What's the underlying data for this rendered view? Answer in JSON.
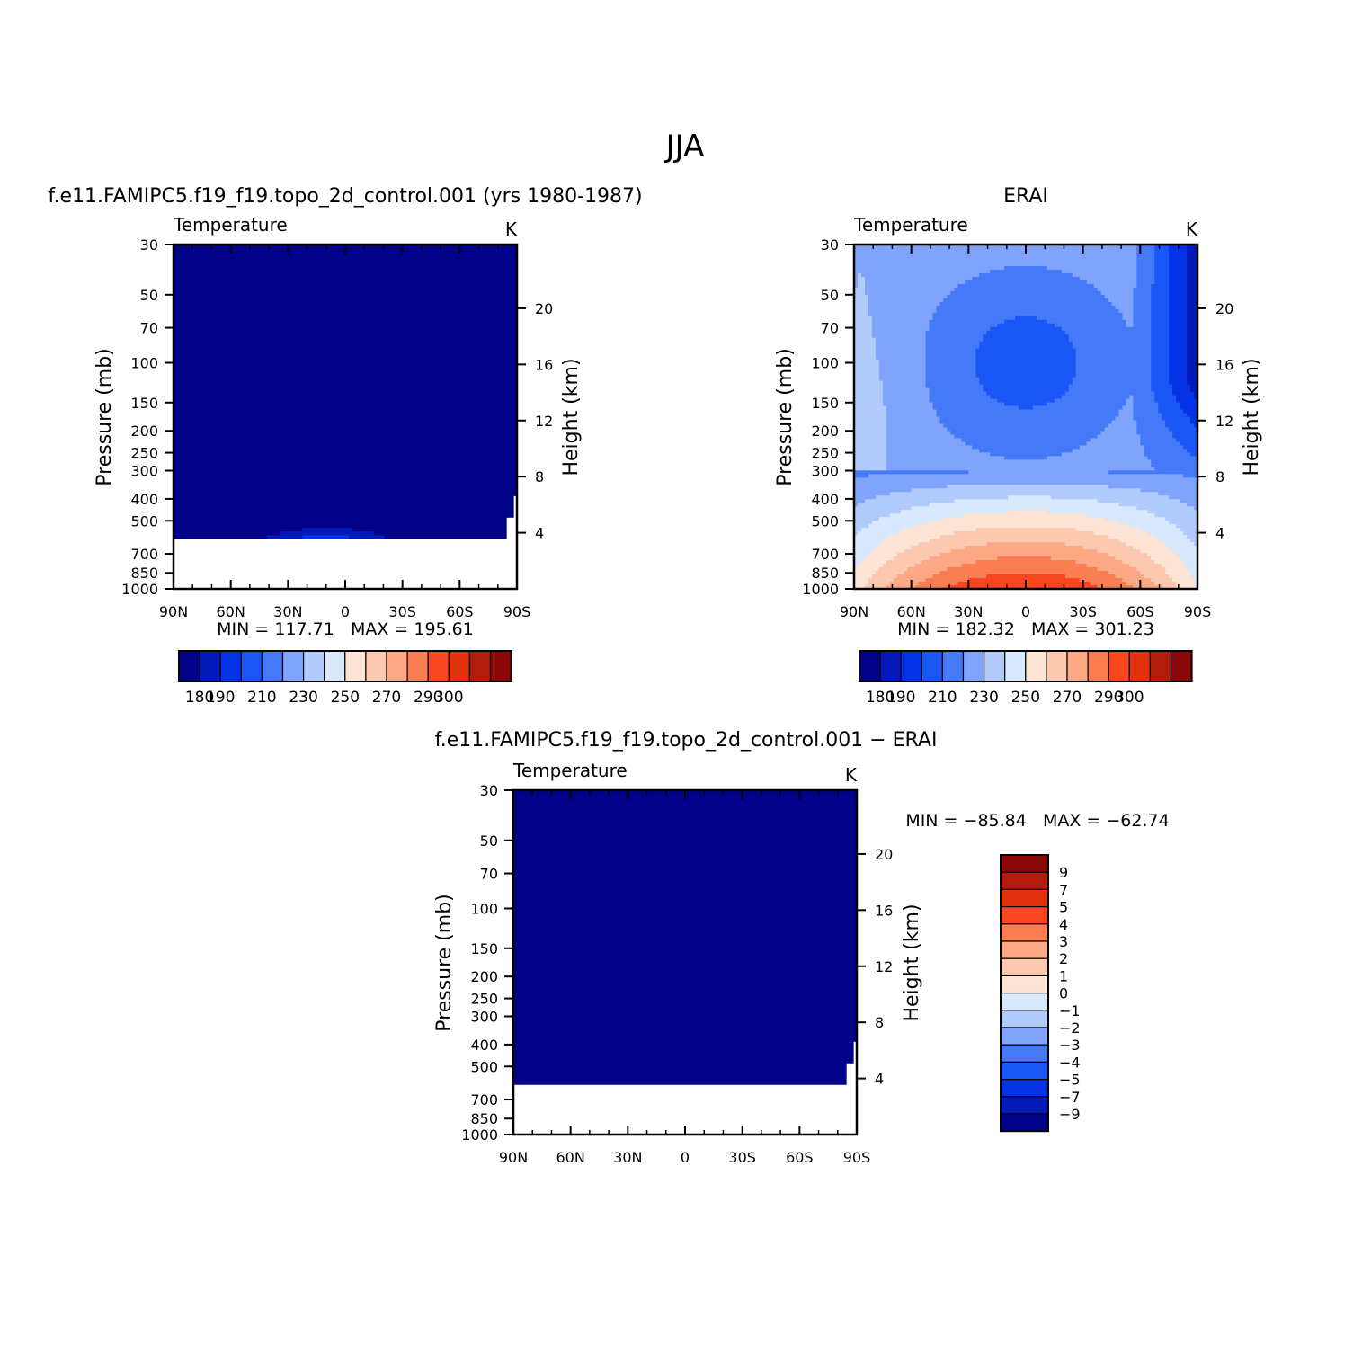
{
  "figure": {
    "title": "JJA"
  },
  "palette": {
    "colors": [
      "#020288",
      "#0319b8",
      "#0433e6",
      "#1a56f5",
      "#4479f7",
      "#80a4fb",
      "#b2cbfd",
      "#d9e9fd",
      "#fde4d4",
      "#fdc8b0",
      "#fca884",
      "#fb7d52",
      "#f7471e",
      "#e2310d",
      "#b21c0b",
      "#8b0808"
    ],
    "missing": "#ffffff"
  },
  "chart_data": [
    {
      "type": "heatmap",
      "name": "panel-model",
      "title": "f.e11.FAMIPC5.f19_f19.topo_2d_control.001 (yrs 1980-1987)",
      "left_label": "Temperature",
      "right_label": "K",
      "xlabel": "",
      "ylabel": "Pressure (mb)",
      "y2label": "Height (km)",
      "x_ticks": [
        "90N",
        "60N",
        "30N",
        "0",
        "30S",
        "60S",
        "90S"
      ],
      "y_ticks": [
        30,
        50,
        70,
        100,
        150,
        200,
        250,
        300,
        400,
        500,
        700,
        850,
        1000
      ],
      "y2_ticks": [
        20,
        16,
        12,
        8,
        4
      ],
      "ylim": [
        1000,
        30
      ],
      "y_scale": "log",
      "xlim": [
        90,
        -90
      ],
      "min_max": "MIN = 117.71   MAX = 195.61",
      "colorbar": {
        "orientation": "horizontal",
        "levels": [
          180,
          190,
          200,
          210,
          220,
          230,
          240,
          250,
          260,
          270,
          280,
          290,
          300,
          310,
          320
        ],
        "labels": [
          "180",
          "190",
          "210",
          "230",
          "250",
          "270",
          "290",
          "300"
        ]
      },
      "field": "model_temperature"
    },
    {
      "type": "heatmap",
      "name": "panel-erai",
      "title": "ERAI",
      "left_label": "Temperature",
      "right_label": "K",
      "xlabel": "",
      "ylabel": "Pressure (mb)",
      "y2label": "Height (km)",
      "x_ticks": [
        "90N",
        "60N",
        "30N",
        "0",
        "30S",
        "60S",
        "90S"
      ],
      "y_ticks": [
        30,
        50,
        70,
        100,
        150,
        200,
        250,
        300,
        400,
        500,
        700,
        850,
        1000
      ],
      "y2_ticks": [
        20,
        16,
        12,
        8,
        4
      ],
      "ylim": [
        1000,
        30
      ],
      "y_scale": "log",
      "xlim": [
        90,
        -90
      ],
      "min_max": "MIN = 182.32   MAX = 301.23",
      "colorbar": {
        "orientation": "horizontal",
        "levels": [
          180,
          190,
          200,
          210,
          220,
          230,
          240,
          250,
          260,
          270,
          280,
          290,
          300,
          310,
          320
        ],
        "labels": [
          "180",
          "190",
          "210",
          "230",
          "250",
          "270",
          "290",
          "300"
        ]
      },
      "field": "erai_temperature"
    },
    {
      "type": "heatmap",
      "name": "panel-diff",
      "title": "f.e11.FAMIPC5.f19_f19.topo_2d_control.001 − ERAI",
      "left_label": "Temperature",
      "right_label": "K",
      "xlabel": "",
      "ylabel": "Pressure (mb)",
      "y2label": "Height (km)",
      "x_ticks": [
        "90N",
        "60N",
        "30N",
        "0",
        "30S",
        "60S",
        "90S"
      ],
      "y_ticks": [
        30,
        50,
        70,
        100,
        150,
        200,
        250,
        300,
        400,
        500,
        700,
        850,
        1000
      ],
      "y2_ticks": [
        20,
        16,
        12,
        8,
        4
      ],
      "ylim": [
        1000,
        30
      ],
      "y_scale": "log",
      "xlim": [
        90,
        -90
      ],
      "min_max": "MIN = −85.84   MAX = −62.74",
      "colorbar": {
        "orientation": "vertical",
        "levels": [
          -9,
          -7,
          -5,
          -4,
          -3,
          -2,
          -1,
          0,
          1,
          2,
          3,
          4,
          5,
          7,
          9
        ],
        "labels": [
          "9",
          "7",
          "5",
          "4",
          "3",
          "2",
          "1",
          "0",
          "−1",
          "−2",
          "−3",
          "−4",
          "−5",
          "−7",
          "−9"
        ]
      },
      "field": "difference"
    }
  ]
}
